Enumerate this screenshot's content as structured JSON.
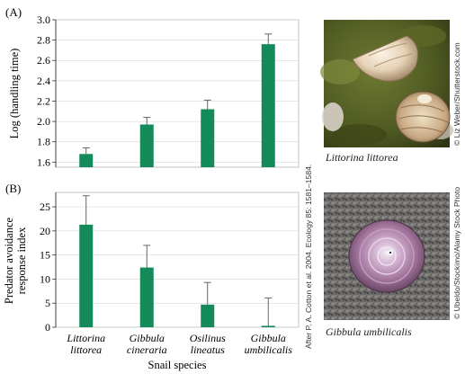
{
  "panels": {
    "a_label": "(A)",
    "b_label": "(B)"
  },
  "chart_data": [
    {
      "type": "bar",
      "panel": "A",
      "ylabel": "Log (handling time)",
      "ylim": [
        1.55,
        3.0
      ],
      "yticks": [
        "1.6",
        "1.8",
        "2.0",
        "2.2",
        "2.4",
        "2.6",
        "2.8",
        "3.0"
      ],
      "categories": [
        "Littorina littorea",
        "Gibbula cineraria",
        "Osilinus lineatus",
        "Gibbula umbilicalis"
      ],
      "values": [
        1.68,
        1.97,
        2.12,
        2.76
      ],
      "error": [
        0.06,
        0.07,
        0.09,
        0.1
      ],
      "color": "#14895a"
    },
    {
      "type": "bar",
      "panel": "B",
      "ylabel_lines": [
        "Predator avoidance",
        "response index"
      ],
      "xlabel": "Snail species",
      "ylim": [
        0,
        28
      ],
      "yticks": [
        "0",
        "5",
        "10",
        "15",
        "20",
        "25"
      ],
      "categories": [
        "Littorina littorea",
        "Gibbula cineraria",
        "Osilinus lineatus",
        "Gibbula umbilicalis"
      ],
      "category_lines": [
        [
          "Littorina",
          "littorea"
        ],
        [
          "Gibbula",
          "cineraria"
        ],
        [
          "Osilinus",
          "lineatus"
        ],
        [
          "Gibbula",
          "umbilicalis"
        ]
      ],
      "values": [
        21.3,
        12.4,
        4.7,
        0.3
      ],
      "error": [
        6.0,
        4.6,
        4.6,
        5.8
      ],
      "color": "#14895a"
    }
  ],
  "photos": {
    "top_caption": "Littorina littorea",
    "top_credit": "© Liz Weber/Shutterstock.com",
    "bottom_caption": "Gibbula umbilicalis",
    "bottom_credit": "© Ubeldo/Stockimo/Alamy Stock Photo"
  },
  "source_note": "After P. A. Cotton et al. 2004. Ecology 85: 1581–1584."
}
